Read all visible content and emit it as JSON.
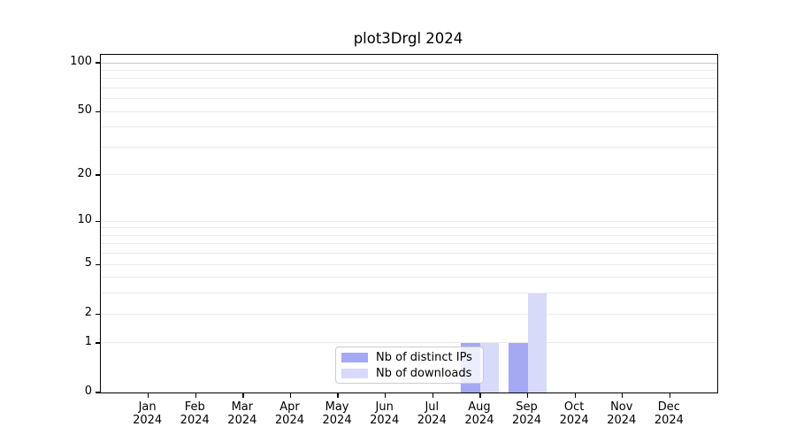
{
  "title": "plot3Drgl 2024",
  "chart_data": {
    "type": "bar",
    "title": "plot3Drgl 2024",
    "categories": [
      "Jan",
      "Feb",
      "Mar",
      "Apr",
      "May",
      "Jun",
      "Jul",
      "Aug",
      "Sep",
      "Oct",
      "Nov",
      "Dec"
    ],
    "year_label": "2024",
    "series": [
      {
        "name": "Nb of distinct IPs",
        "color": "#a5a8f3",
        "values": [
          0,
          0,
          0,
          0,
          0,
          0,
          0,
          1,
          1,
          0,
          0,
          0
        ]
      },
      {
        "name": "Nb of downloads",
        "color": "#d8daf9",
        "values": [
          0,
          0,
          0,
          0,
          0,
          0,
          0,
          1,
          3,
          0,
          0,
          0
        ]
      }
    ],
    "xlabel": "",
    "ylabel": "",
    "yscale": "log1p",
    "ylim": [
      0,
      112
    ],
    "ytick_values": [
      0,
      1,
      2,
      5,
      10,
      20,
      50,
      100
    ],
    "ytick_labels": [
      "0",
      "1",
      "2",
      "5",
      "10",
      "20",
      "50",
      "100"
    ],
    "gridline_values": [
      1,
      2,
      3,
      4,
      5,
      6,
      7,
      8,
      9,
      10,
      20,
      30,
      40,
      50,
      60,
      70,
      80,
      90,
      100
    ],
    "grid": true,
    "legend_position": "lower center"
  },
  "colors": {
    "grid_minor": "#ebebeb",
    "grid_100": "#c6c6c6",
    "spine": "#000000",
    "background": "#ffffff"
  }
}
